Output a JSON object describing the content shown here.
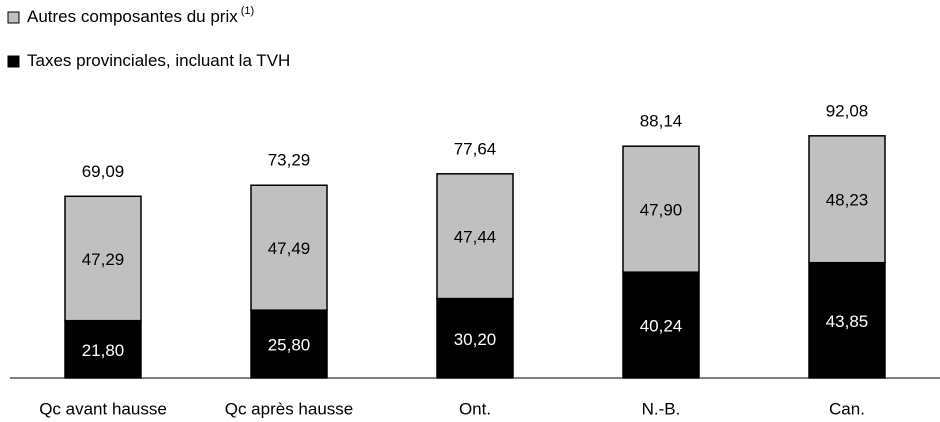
{
  "chart_data": {
    "type": "stacked_bar",
    "categories": [
      "Qc avant hausse",
      "Qc après hausse",
      "Ont.",
      "N.-B.",
      "Can."
    ],
    "series": [
      {
        "name": "Taxes provinciales, incluant la TVH",
        "color": "#000000",
        "values": [
          21.8,
          25.8,
          30.2,
          40.24,
          43.85
        ],
        "value_labels": [
          "21,80",
          "25,80",
          "30,20",
          "40,24",
          "43,85"
        ]
      },
      {
        "name": "Autres composantes du prix",
        "color": "#c0c0c0",
        "legend_note": "(1)",
        "values": [
          47.29,
          47.49,
          47.44,
          47.9,
          48.23
        ],
        "value_labels": [
          "47,29",
          "47,49",
          "47,44",
          "47,90",
          "48,23"
        ]
      }
    ],
    "totals": [
      69.09,
      73.29,
      77.64,
      88.14,
      92.08
    ],
    "total_labels": [
      "69,09",
      "73,29",
      "77,64",
      "88,14",
      "92,08"
    ],
    "ylim": [
      0,
      100
    ]
  }
}
